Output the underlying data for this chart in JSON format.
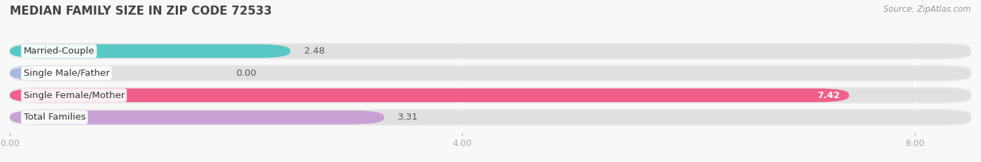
{
  "title": "MEDIAN FAMILY SIZE IN ZIP CODE 72533",
  "source": "Source: ZipAtlas.com",
  "categories": [
    "Married-Couple",
    "Single Male/Father",
    "Single Female/Mother",
    "Total Families"
  ],
  "values": [
    2.48,
    0.0,
    7.42,
    3.31
  ],
  "bar_colors": [
    "#58c8c4",
    "#a8b8e8",
    "#f0608a",
    "#c8a0d4"
  ],
  "background_color": "#f0f0f0",
  "bar_bg_color": "#e2e2e2",
  "row_bg_colors": [
    "#f5f5f5",
    "#f9f9f9",
    "#f5f5f5",
    "#f9f9f9"
  ],
  "xlim_max": 8.5,
  "xticks": [
    0.0,
    4.0,
    8.0
  ],
  "title_fontsize": 12,
  "label_fontsize": 9.5,
  "value_fontsize": 9.5,
  "source_fontsize": 8.5
}
